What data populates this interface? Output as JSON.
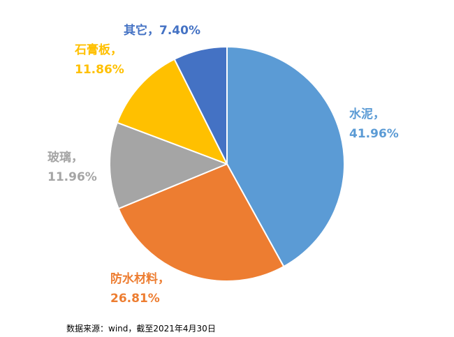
{
  "chart_data": {
    "type": "pie",
    "title": "",
    "start_angle_deg": 0,
    "direction": "clockwise",
    "slices": [
      {
        "name": "水泥",
        "value": 41.96,
        "value_text": "41.96%",
        "color": "#5b9bd5"
      },
      {
        "name": "防水材料",
        "value": 26.81,
        "value_text": "26.81%",
        "color": "#ed7d31"
      },
      {
        "name": "玻璃",
        "value": 11.96,
        "value_text": "11.96%",
        "color": "#a5a5a5"
      },
      {
        "name": "石膏板",
        "value": 11.86,
        "value_text": "11.86%",
        "color": "#ffc000"
      },
      {
        "name": "其它",
        "value": 7.4,
        "value_text": "7.40%",
        "color": "#4472c4"
      }
    ],
    "labels": [
      {
        "line1": "水泥，",
        "line2": "41.96%"
      },
      {
        "line1": "防水材料，",
        "line2": "26.81%"
      },
      {
        "line1": "玻璃，",
        "line2": "11.96%"
      },
      {
        "line1": "石膏板，",
        "line2": "11.86%"
      },
      {
        "line1": "其它，7.40%",
        "line2": ""
      }
    ],
    "source": "数据来源：wind，截至2021年4月30日",
    "slice_border_color": "#ffffff"
  }
}
